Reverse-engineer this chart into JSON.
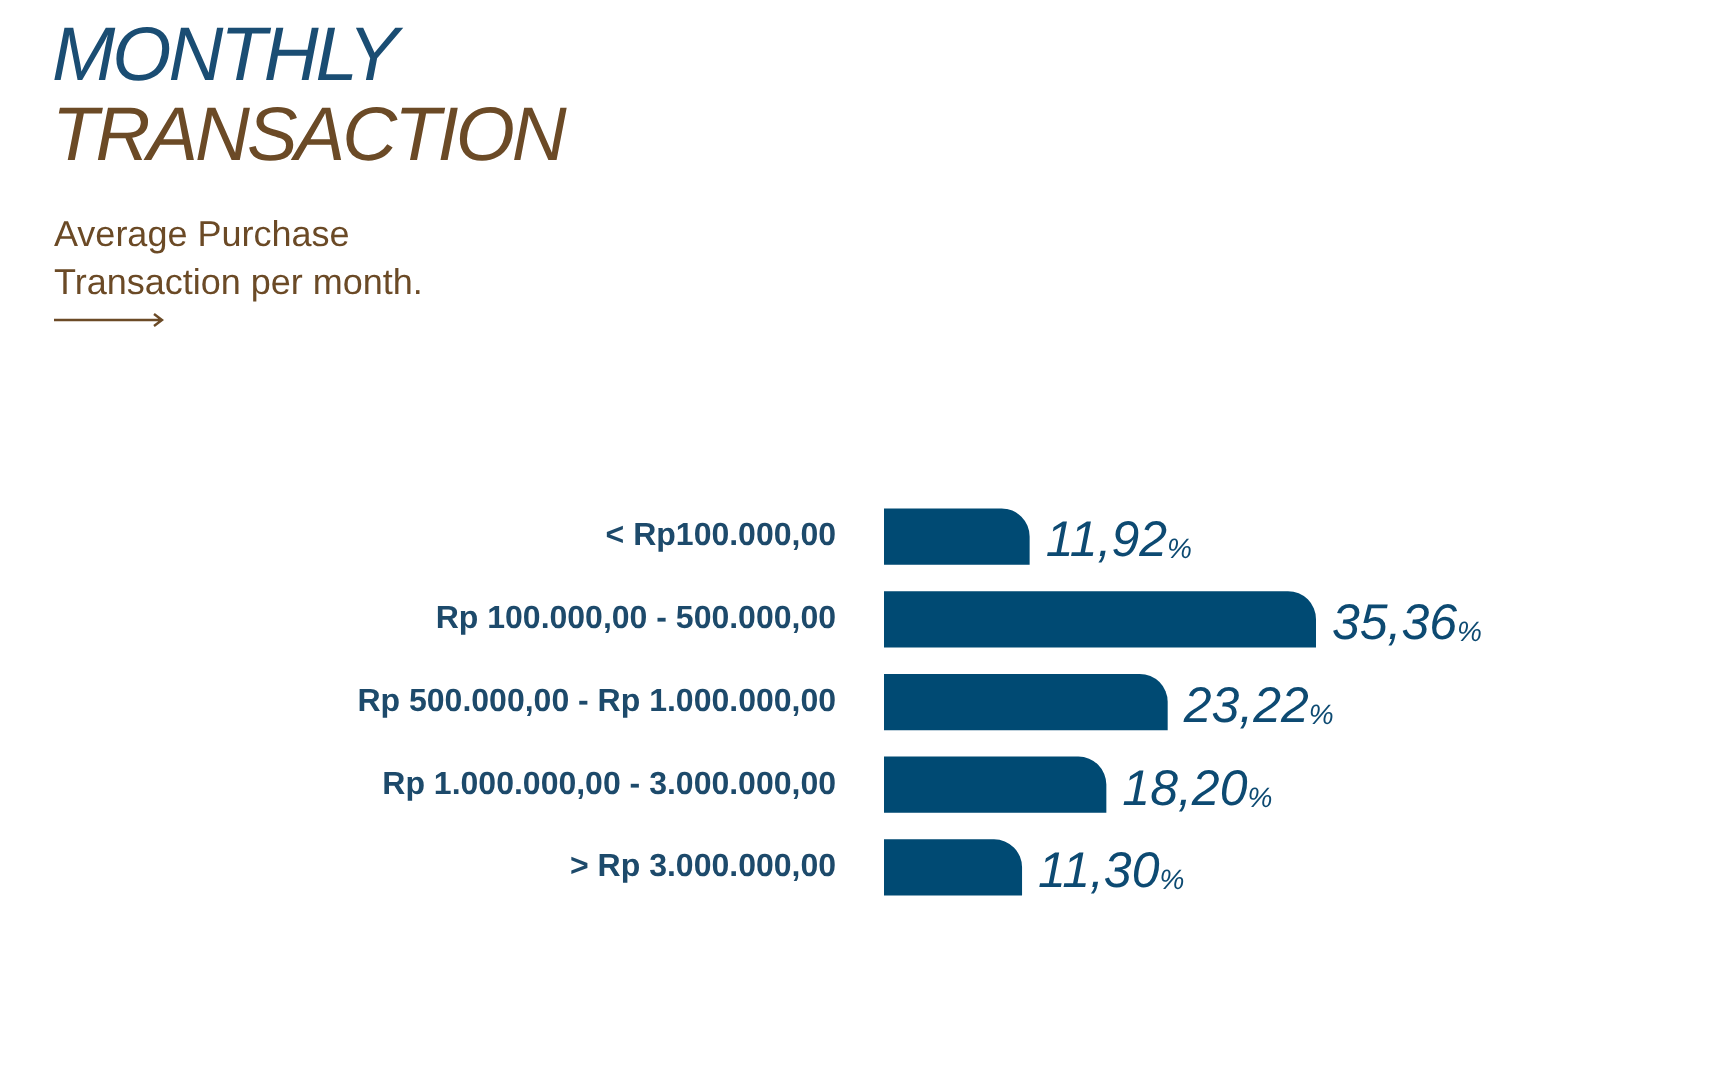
{
  "chart_data": {
    "type": "bar",
    "orientation": "horizontal",
    "title": "MONTHLY TRANSACTION",
    "subtitle": "Average Purchase Transaction per month.",
    "categories": [
      "< Rp100.000,00",
      "Rp 100.000,00 - 500.000,00",
      "Rp 500.000,00 - Rp 1.000.000,00",
      "Rp 1.000.000,00 - 3.000.000,00",
      "> Rp 3.000.000,00"
    ],
    "values": [
      11.92,
      35.36,
      23.22,
      18.2,
      11.3
    ],
    "value_labels": [
      "11,92%",
      "35,36%",
      "23,22%",
      "18,20%",
      "11,30%"
    ],
    "color": "#004a73",
    "tick_labels": "y"
  }
}
